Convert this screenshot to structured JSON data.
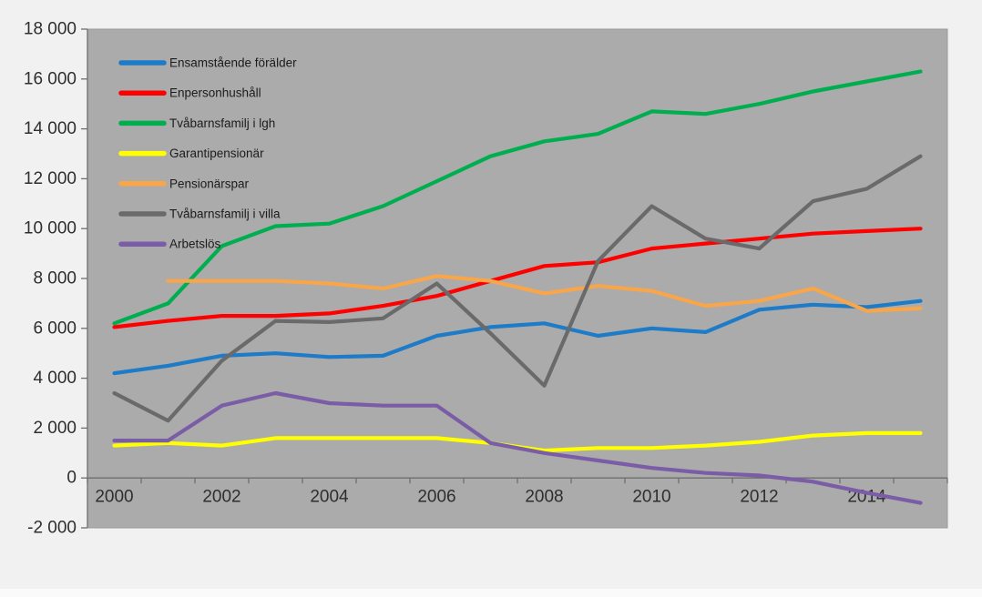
{
  "chart_data": {
    "type": "line",
    "title": "",
    "xlabel": "",
    "ylabel": "",
    "grid": false,
    "legend_position": "inside-top-left",
    "plot_bg_color": "#ababab",
    "page_bg_color": "#f1f1f1",
    "axis_color": "#6f6f6f",
    "plot_border_color": "#9a9a9a",
    "label_color": "#2e2e2e",
    "legend_text_color": "#1c1c1c",
    "ylim": [
      -2000,
      18000
    ],
    "y_tick_step": 2000,
    "y_ticks": [
      {
        "value": 18000,
        "label": "18 000"
      },
      {
        "value": 16000,
        "label": "16 000"
      },
      {
        "value": 14000,
        "label": "14 000"
      },
      {
        "value": 12000,
        "label": "12 000"
      },
      {
        "value": 10000,
        "label": "10 000"
      },
      {
        "value": 8000,
        "label": "8 000"
      },
      {
        "value": 6000,
        "label": "6 000"
      },
      {
        "value": 4000,
        "label": "4 000"
      },
      {
        "value": 2000,
        "label": "2 000"
      },
      {
        "value": 0,
        "label": "0"
      },
      {
        "value": -2000,
        "label": "-2 000"
      }
    ],
    "x": [
      2000,
      2001,
      2002,
      2003,
      2004,
      2005,
      2006,
      2007,
      2008,
      2009,
      2010,
      2011,
      2012,
      2013,
      2014,
      2015
    ],
    "x_tick_labels": [
      {
        "year": 2000,
        "label": "2000"
      },
      {
        "year": 2002,
        "label": "2002"
      },
      {
        "year": 2004,
        "label": "2004"
      },
      {
        "year": 2006,
        "label": "2006"
      },
      {
        "year": 2008,
        "label": "2008"
      },
      {
        "year": 2010,
        "label": "2010"
      },
      {
        "year": 2012,
        "label": "2012"
      },
      {
        "year": 2014,
        "label": "2014"
      }
    ],
    "series": [
      {
        "name": "Ensamstående förälder",
        "color": "#1e7bc8",
        "values": [
          4200,
          4500,
          4900,
          5000,
          4850,
          4900,
          5700,
          6050,
          6200,
          5700,
          6000,
          5850,
          6750,
          6950,
          6850,
          7100
        ]
      },
      {
        "name": "Enpersonhushåll",
        "color": "#fe0000",
        "values": [
          6050,
          6300,
          6500,
          6500,
          6600,
          6900,
          7300,
          7900,
          8500,
          8650,
          9200,
          9400,
          9600,
          9800,
          9900,
          10000
        ]
      },
      {
        "name": "Tvåbarnsfamilj i lgh",
        "color": "#00ae50",
        "values": [
          6200,
          7000,
          9300,
          10100,
          10200,
          10900,
          11900,
          12900,
          13500,
          13800,
          14700,
          14600,
          15000,
          15500,
          15900,
          16300
        ]
      },
      {
        "name": "Garantipensionär",
        "color": "#ffff00",
        "values": [
          1300,
          1400,
          1300,
          1600,
          1600,
          1600,
          1600,
          1400,
          1100,
          1200,
          1200,
          1300,
          1450,
          1700,
          1800,
          1800
        ]
      },
      {
        "name": "Pensionärspar",
        "color": "#f9a64a",
        "values": [
          null,
          7900,
          7900,
          7900,
          7800,
          7600,
          8100,
          7900,
          7400,
          7700,
          7500,
          6900,
          7100,
          7600,
          6700,
          6800
        ]
      },
      {
        "name": "Tvåbarnsfamilj i villa",
        "color": "#6a6a6a",
        "values": [
          3400,
          2300,
          4700,
          6300,
          6250,
          6400,
          7800,
          5800,
          3700,
          8700,
          10900,
          9600,
          9200,
          11100,
          11600,
          12900
        ]
      },
      {
        "name": "Arbetslös",
        "color": "#7a5da6",
        "values": [
          1500,
          1500,
          2900,
          3400,
          3000,
          2900,
          2900,
          1400,
          1000,
          700,
          400,
          200,
          100,
          -150,
          -600,
          -1000
        ]
      }
    ]
  }
}
